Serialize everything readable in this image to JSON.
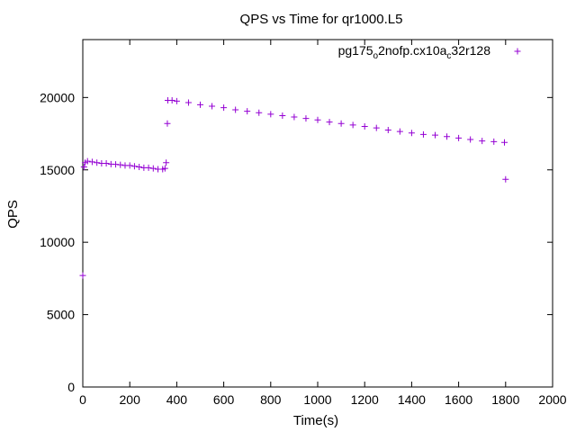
{
  "chart_data": {
    "type": "scatter",
    "title": "QPS vs Time for qr1000.L5",
    "xlabel": "Time(s)",
    "ylabel": "QPS",
    "xlim": [
      0,
      2000
    ],
    "ylim": [
      0,
      24000
    ],
    "x_ticks": [
      0,
      200,
      400,
      600,
      800,
      1000,
      1200,
      1400,
      1600,
      1800,
      2000
    ],
    "y_ticks": [
      0,
      5000,
      10000,
      15000,
      20000
    ],
    "x_tick_labels": [
      "0",
      "200",
      "400",
      "600",
      "800",
      "1000",
      "1200",
      "1400",
      "1600",
      "1800",
      "2000"
    ],
    "y_tick_labels": [
      "0",
      "5000",
      "10000",
      "15000",
      "20000"
    ],
    "grid": false,
    "legend_position": "top-right",
    "marker": "+",
    "series": [
      {
        "legend": {
          "main": "pg175",
          "sub1": "o",
          "mid": "2nofp.cx10a",
          "sub2": "c",
          "tail": "32r128"
        },
        "color": "#9400d3",
        "points": [
          [
            0,
            7700
          ],
          [
            5,
            15200
          ],
          [
            10,
            15500
          ],
          [
            20,
            15600
          ],
          [
            40,
            15550
          ],
          [
            60,
            15500
          ],
          [
            80,
            15450
          ],
          [
            100,
            15450
          ],
          [
            120,
            15400
          ],
          [
            140,
            15380
          ],
          [
            160,
            15350
          ],
          [
            180,
            15300
          ],
          [
            200,
            15300
          ],
          [
            220,
            15250
          ],
          [
            240,
            15200
          ],
          [
            260,
            15150
          ],
          [
            280,
            15150
          ],
          [
            300,
            15100
          ],
          [
            320,
            15050
          ],
          [
            340,
            15050
          ],
          [
            350,
            15100
          ],
          [
            355,
            15500
          ],
          [
            360,
            18200
          ],
          [
            362,
            19800
          ],
          [
            380,
            19800
          ],
          [
            400,
            19750
          ],
          [
            450,
            19650
          ],
          [
            500,
            19500
          ],
          [
            550,
            19400
          ],
          [
            600,
            19300
          ],
          [
            650,
            19150
          ],
          [
            700,
            19050
          ],
          [
            750,
            18950
          ],
          [
            800,
            18850
          ],
          [
            850,
            18750
          ],
          [
            900,
            18650
          ],
          [
            950,
            18550
          ],
          [
            1000,
            18450
          ],
          [
            1050,
            18300
          ],
          [
            1100,
            18200
          ],
          [
            1150,
            18100
          ],
          [
            1200,
            18000
          ],
          [
            1250,
            17900
          ],
          [
            1300,
            17750
          ],
          [
            1350,
            17650
          ],
          [
            1400,
            17550
          ],
          [
            1450,
            17450
          ],
          [
            1500,
            17400
          ],
          [
            1550,
            17300
          ],
          [
            1600,
            17200
          ],
          [
            1650,
            17100
          ],
          [
            1700,
            17000
          ],
          [
            1750,
            16950
          ],
          [
            1795,
            16900
          ],
          [
            1800,
            14350
          ]
        ]
      }
    ]
  }
}
